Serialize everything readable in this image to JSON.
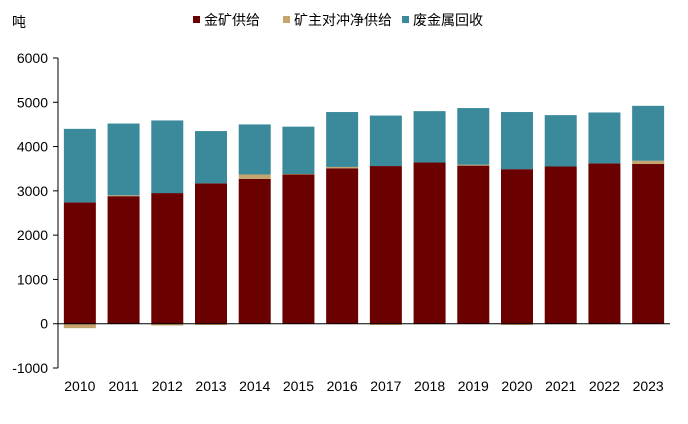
{
  "chart_data": {
    "type": "bar",
    "stacked": true,
    "unit_label": "吨",
    "title": "",
    "xlabel": "",
    "ylabel": "",
    "categories": [
      "2010",
      "2011",
      "2012",
      "2013",
      "2014",
      "2015",
      "2016",
      "2017",
      "2018",
      "2019",
      "2020",
      "2021",
      "2022",
      "2023"
    ],
    "ylim": [
      -1000,
      6000
    ],
    "yticks": [
      -1000,
      0,
      1000,
      2000,
      3000,
      4000,
      5000,
      6000
    ],
    "grid": false,
    "legend_position": "top",
    "series": [
      {
        "name": "金矿供给",
        "color": "#6b0000",
        "values": [
          2740,
          2880,
          2950,
          3170,
          3270,
          3370,
          3510,
          3560,
          3640,
          3570,
          3490,
          3550,
          3620,
          3610
        ]
      },
      {
        "name": "矿主对冲净供给",
        "color": "#c5a46e",
        "values": [
          -100,
          20,
          -40,
          -30,
          100,
          10,
          30,
          -30,
          -10,
          20,
          -30,
          -5,
          -5,
          70
        ]
      },
      {
        "name": "废金属回收",
        "color": "#3b8a9b",
        "values": [
          1660,
          1620,
          1640,
          1180,
          1130,
          1070,
          1240,
          1140,
          1160,
          1280,
          1290,
          1160,
          1150,
          1240
        ]
      }
    ]
  }
}
